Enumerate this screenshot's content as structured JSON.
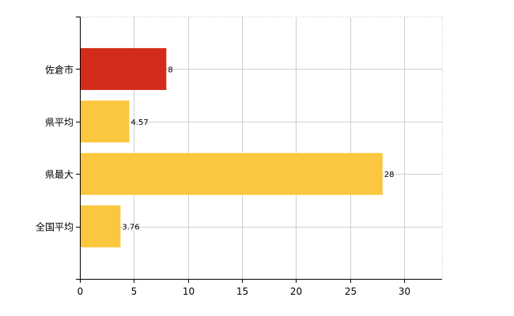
{
  "chart_data": {
    "type": "bar",
    "orientation": "horizontal",
    "title": "",
    "xlabel": "",
    "ylabel": "",
    "categories": [
      "佐倉市",
      "県平均",
      "県最大",
      "全国平均"
    ],
    "values": [
      8,
      4.57,
      28,
      3.76
    ],
    "data_labels": [
      "8",
      "4.57",
      "28",
      "3.76"
    ],
    "colors": [
      "#D42C1B",
      "#FAC73E",
      "#FAC73E",
      "#FAC73E"
    ],
    "xlim": [
      0,
      33.5
    ],
    "xticks": [
      0,
      5,
      10,
      15,
      20,
      25,
      30
    ],
    "xtick_labels": [
      "0",
      "5",
      "10",
      "15",
      "20",
      "25",
      "30"
    ],
    "grid": true,
    "legend": "none"
  }
}
